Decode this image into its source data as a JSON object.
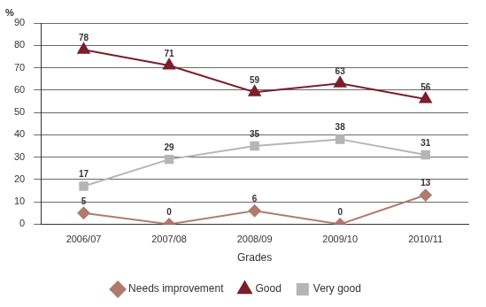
{
  "chart_data": {
    "type": "line",
    "x_label": "Grades",
    "y_label": "%",
    "categories": [
      "2006/07",
      "2007/08",
      "2008/09",
      "2009/10",
      "2010/11"
    ],
    "series": [
      {
        "name": "Needs improvement",
        "color": "#b07a6e",
        "marker": "diamond",
        "line_style": "solid",
        "values": [
          5,
          0,
          6,
          0,
          13
        ]
      },
      {
        "name": "Good",
        "color": "#7a1f2b",
        "marker": "triangle",
        "line_style": "solid",
        "values": [
          78,
          71,
          59,
          63,
          56
        ]
      },
      {
        "name": "Very good",
        "color": "#b5b5b5",
        "marker": "square",
        "line_style": "solid",
        "values": [
          17,
          29,
          35,
          38,
          31
        ]
      }
    ],
    "ylim": [
      0,
      90
    ],
    "yticks": [
      0,
      10,
      20,
      30,
      40,
      50,
      60,
      70,
      80,
      90
    ],
    "grid": true,
    "legend": "bottom",
    "data_labels": true
  }
}
